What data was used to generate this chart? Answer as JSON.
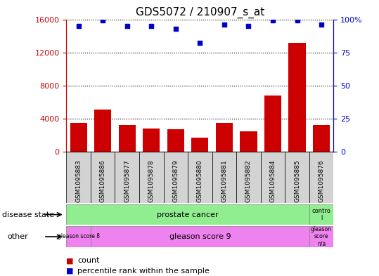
{
  "title": "GDS5072 / 210907_s_at",
  "samples": [
    "GSM1095883",
    "GSM1095886",
    "GSM1095877",
    "GSM1095878",
    "GSM1095879",
    "GSM1095880",
    "GSM1095881",
    "GSM1095882",
    "GSM1095884",
    "GSM1095885",
    "GSM1095876"
  ],
  "counts": [
    3500,
    5100,
    3200,
    2800,
    2700,
    1700,
    3500,
    2500,
    6800,
    13200,
    3200
  ],
  "percentile_ranks": [
    95,
    99,
    95,
    95,
    93,
    82,
    96,
    95,
    99,
    99,
    96
  ],
  "ylim_left": [
    0,
    16000
  ],
  "ylim_right": [
    0,
    100
  ],
  "yticks_left": [
    0,
    4000,
    8000,
    12000,
    16000
  ],
  "yticks_right": [
    0,
    25,
    50,
    75,
    100
  ],
  "bar_color": "#cc0000",
  "dot_color": "#0000cc",
  "bg_color": "#ffffff",
  "cell_bg": "#d3d3d3",
  "green_color": "#90ee90",
  "pink_color": "#ee82ee",
  "legend_items": [
    {
      "label": "count",
      "color": "#cc0000"
    },
    {
      "label": "percentile rank within the sample",
      "color": "#0000cc"
    }
  ]
}
